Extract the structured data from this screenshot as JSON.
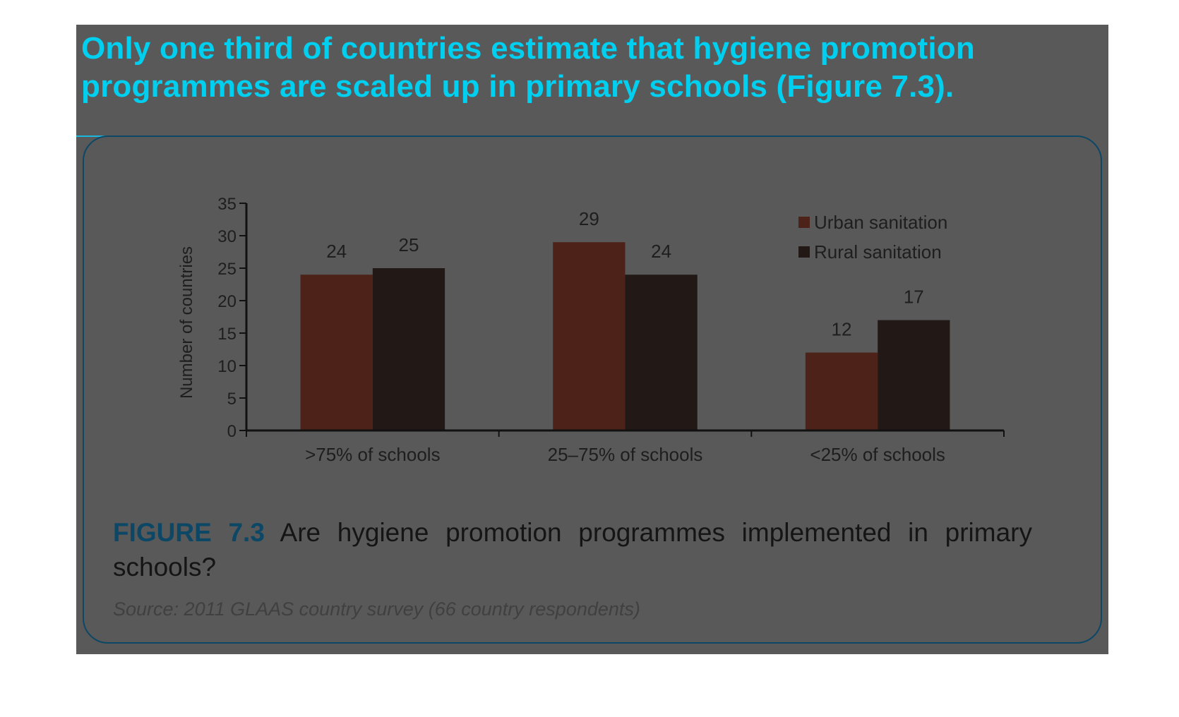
{
  "headline": "Only one third of countries estimate that hygiene promotion programmes are scaled up in primary schools (Figure 7.3).",
  "figure": {
    "caption_number": "FIGURE 7.3",
    "caption_text": " Are hygiene promotion programmes implemented in primary schools?",
    "source": "Source: 2011 GLAAS country survey (66 country respondents)"
  },
  "colors": {
    "urban": "#4d2219",
    "rural": "#221917",
    "accent": "#00cfef",
    "box_border": "#0d4766"
  },
  "chart_data": {
    "type": "bar",
    "title": "",
    "xlabel": "",
    "ylabel": "Number of countries",
    "ylim": [
      0,
      35
    ],
    "yticks": [
      0,
      5,
      10,
      15,
      20,
      25,
      30,
      35
    ],
    "categories": [
      ">75% of schools",
      "25–75% of schools",
      "<25% of schools"
    ],
    "series": [
      {
        "name": "Urban sanitation",
        "values": [
          24,
          29,
          12
        ]
      },
      {
        "name": "Rural sanitation",
        "values": [
          25,
          24,
          17
        ]
      }
    ],
    "legend": "top-right",
    "grid": false
  }
}
